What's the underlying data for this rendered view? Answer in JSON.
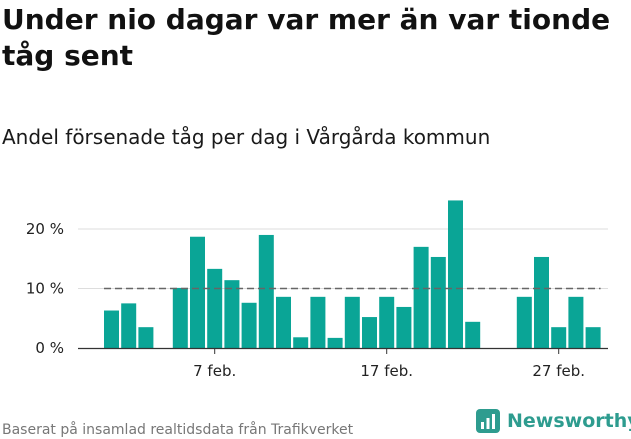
{
  "header": {
    "title": "Under nio dagar var mer än var tionde tåg sent",
    "subtitle": "Andel försenade tåg per dag i Vårgårda kommun"
  },
  "footer": {
    "source": "Baserat på insamlad realtidsdata från Trafikverket",
    "brand": "Newsworthy",
    "brand_icon": "bar-chart-icon"
  },
  "colors": {
    "bar": "#0aa596",
    "reference_line": "#666666",
    "grid": "#dddddd",
    "brand": "#2e9c8f"
  },
  "chart_data": {
    "type": "bar",
    "ylim": [
      0,
      25
    ],
    "yticks": [
      0,
      10,
      20
    ],
    "ytick_labels": [
      "0 %",
      "10 %",
      "20 %"
    ],
    "xtick_labels": [
      {
        "day": 6,
        "label": "7 feb."
      },
      {
        "day": 16,
        "label": "17 feb."
      },
      {
        "day": 26,
        "label": "27 feb."
      }
    ],
    "grid": "horizontal",
    "reference_line": 10,
    "days": [
      0,
      1,
      2,
      4,
      5,
      6,
      7,
      8,
      9,
      10,
      11,
      12,
      13,
      14,
      15,
      16,
      17,
      18,
      19,
      20,
      21,
      22,
      23,
      24,
      25,
      26,
      27,
      28
    ],
    "values": [
      6.3,
      7.5,
      3.5,
      10.1,
      18.7,
      13.3,
      11.4,
      7.6,
      19.0,
      8.6,
      1.8,
      8.6,
      1.7,
      8.6,
      5.2,
      8.6,
      6.9,
      17.0,
      15.3,
      24.8,
      4.4,
      null,
      null,
      8.6,
      15.3,
      3.5,
      8.6,
      3.5
    ]
  }
}
